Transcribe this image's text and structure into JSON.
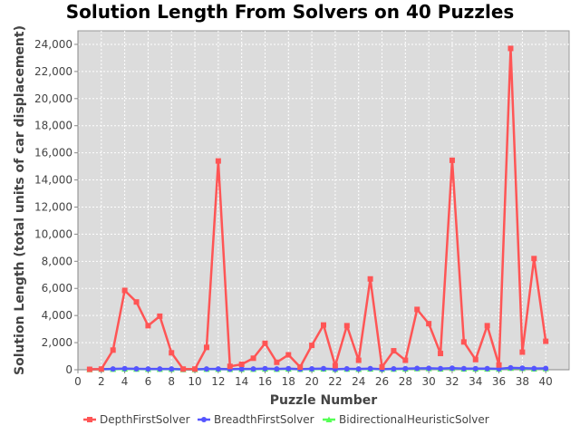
{
  "chart_data": {
    "type": "line",
    "title": "Solution Length From Solvers on 40 Puzzles",
    "xlabel": "Puzzle Number",
    "ylabel": "Solution Length (total units of car displacement)",
    "xlim": [
      0,
      42
    ],
    "ylim": [
      0,
      25000
    ],
    "x_ticks": [
      0,
      2,
      4,
      6,
      8,
      10,
      12,
      14,
      16,
      18,
      20,
      22,
      24,
      26,
      28,
      30,
      32,
      34,
      36,
      38,
      40
    ],
    "y_ticks": [
      0,
      2000,
      4000,
      6000,
      8000,
      10000,
      12000,
      14000,
      16000,
      18000,
      20000,
      22000,
      24000
    ],
    "y_tick_labels": [
      "0",
      "2,000",
      "4,000",
      "6,000",
      "8,000",
      "10,000",
      "12,000",
      "14,000",
      "16,000",
      "18,000",
      "20,000",
      "22,000",
      "24,000"
    ],
    "grid": true,
    "legend_position": "bottom",
    "x": [
      1,
      2,
      3,
      4,
      5,
      6,
      7,
      8,
      9,
      10,
      11,
      12,
      13,
      14,
      15,
      16,
      17,
      18,
      19,
      20,
      21,
      22,
      23,
      24,
      25,
      26,
      27,
      28,
      29,
      30,
      31,
      32,
      33,
      34,
      35,
      36,
      37,
      38,
      39,
      40
    ],
    "series": [
      {
        "name": "DepthFirstSolver",
        "color": "#ff5555",
        "marker": "square",
        "values": [
          30,
          50,
          1450,
          5850,
          5000,
          3250,
          3950,
          1250,
          50,
          50,
          1650,
          15400,
          250,
          400,
          850,
          1950,
          550,
          1100,
          200,
          1800,
          3300,
          300,
          3250,
          700,
          6700,
          200,
          1400,
          700,
          4450,
          3400,
          1200,
          15450,
          2050,
          750,
          3250,
          350,
          23700,
          1300,
          8200,
          2100
        ]
      },
      {
        "name": "BreadthFirstSolver",
        "color": "#5555ff",
        "marker": "circle",
        "values": [
          30,
          40,
          60,
          80,
          70,
          60,
          60,
          60,
          30,
          30,
          60,
          60,
          40,
          60,
          60,
          80,
          60,
          80,
          40,
          70,
          80,
          40,
          70,
          60,
          80,
          40,
          70,
          80,
          100,
          110,
          80,
          120,
          80,
          80,
          80,
          70,
          140,
          120,
          90,
          100
        ]
      },
      {
        "name": "BidirectionalHeuristicSolver",
        "color": "#55ff55",
        "marker": "triangle",
        "values": [
          20,
          30,
          40,
          60,
          50,
          40,
          40,
          40,
          20,
          20,
          40,
          40,
          30,
          40,
          40,
          60,
          40,
          60,
          30,
          50,
          60,
          30,
          50,
          40,
          60,
          30,
          50,
          60,
          80,
          90,
          60,
          100,
          60,
          60,
          60,
          50,
          120,
          100,
          70,
          80
        ]
      }
    ]
  }
}
